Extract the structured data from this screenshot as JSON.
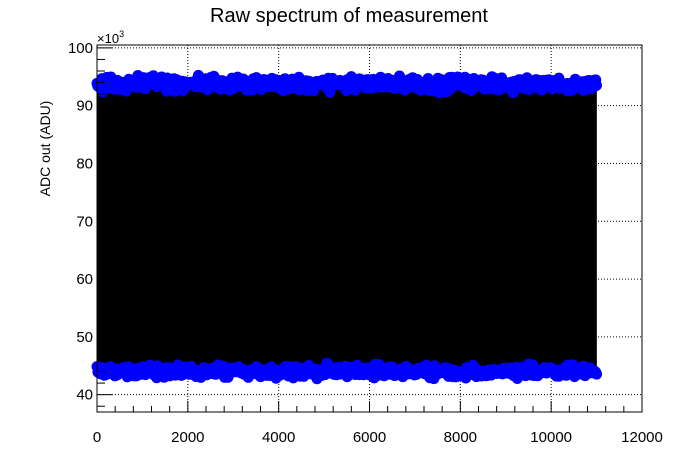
{
  "chart_data": {
    "type": "scatter",
    "title": "Raw spectrum of measurement",
    "xlabel": "",
    "ylabel": "ADC out (ADU)",
    "y_multiplier": {
      "base": "×10",
      "exponent": "3"
    },
    "xlim": [
      0,
      12000
    ],
    "ylim": [
      37000,
      100500
    ],
    "x_ticks": [
      0,
      2000,
      4000,
      6000,
      8000,
      10000,
      12000
    ],
    "x_tick_labels": [
      "0",
      "2000",
      "4000",
      "6000",
      "8000",
      "10000",
      "12000"
    ],
    "y_ticks": [
      40000,
      50000,
      60000,
      70000,
      80000,
      90000,
      100000
    ],
    "y_tick_labels": [
      "40",
      "50",
      "60",
      "70",
      "80",
      "90",
      "100"
    ],
    "grid": true,
    "legend": "none",
    "series": [
      {
        "marker_color": "#0000ff",
        "line_color": "#000000",
        "x_range": [
          0,
          11000
        ],
        "points_shown": 11000,
        "high_band": {
          "min": 92000,
          "max": 95500,
          "center": 93800
        },
        "low_band": {
          "min": 42500,
          "max": 45500,
          "center": 43800
        }
      }
    ]
  }
}
